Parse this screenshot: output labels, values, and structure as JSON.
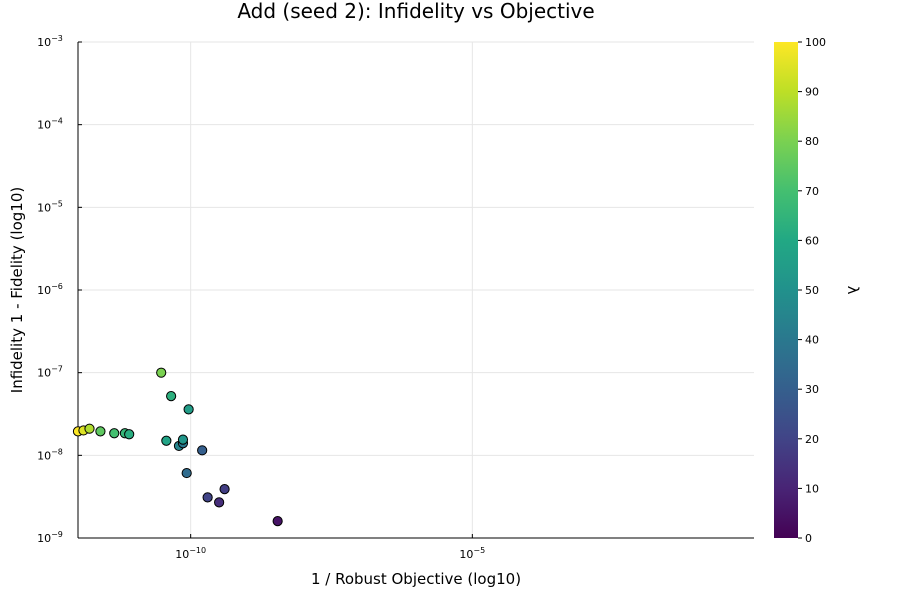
{
  "chart_data": {
    "type": "scatter",
    "title": "Add (seed 2): Infidelity vs Objective",
    "xlabel": "1 / Robust Objective (log10)",
    "ylabel": "Infidelity 1 - Fidelity (log10)",
    "x_scale": "log",
    "y_scale": "log",
    "xlim": [
      1e-12,
      1.0
    ],
    "ylim": [
      1e-09,
      0.001
    ],
    "x_ticks": [
      {
        "value": 1e-10,
        "base": "10",
        "exp": "−10"
      },
      {
        "value": 1e-05,
        "base": "10",
        "exp": "−5"
      }
    ],
    "y_ticks": [
      {
        "value": 1e-09,
        "base": "10",
        "exp": "−9"
      },
      {
        "value": 1e-08,
        "base": "10",
        "exp": "−8"
      },
      {
        "value": 1e-07,
        "base": "10",
        "exp": "−7"
      },
      {
        "value": 1e-06,
        "base": "10",
        "exp": "−6"
      },
      {
        "value": 1e-05,
        "base": "10",
        "exp": "−5"
      },
      {
        "value": 0.0001,
        "base": "10",
        "exp": "−4"
      },
      {
        "value": 0.001,
        "base": "10",
        "exp": "−3"
      }
    ],
    "grid": true,
    "colorbar": {
      "label": "λ",
      "range": [
        0,
        100
      ],
      "ticks": [
        "0",
        "10",
        "20",
        "30",
        "40",
        "50",
        "60",
        "70",
        "80",
        "90",
        "100"
      ],
      "colormap": "viridis"
    },
    "points": [
      {
        "x": 1e-12,
        "y": 1.95e-08,
        "lambda": 100
      },
      {
        "x": 1.25e-12,
        "y": 2e-08,
        "lambda": 95
      },
      {
        "x": 1.6e-12,
        "y": 2.1e-08,
        "lambda": 88
      },
      {
        "x": 2.5e-12,
        "y": 1.95e-08,
        "lambda": 75
      },
      {
        "x": 4.4e-12,
        "y": 1.85e-08,
        "lambda": 70
      },
      {
        "x": 6.8e-12,
        "y": 1.85e-08,
        "lambda": 66
      },
      {
        "x": 8.1e-12,
        "y": 1.8e-08,
        "lambda": 62
      },
      {
        "x": 3e-11,
        "y": 1e-07,
        "lambda": 80
      },
      {
        "x": 4.5e-11,
        "y": 5.2e-08,
        "lambda": 63
      },
      {
        "x": 3.7e-11,
        "y": 1.5e-08,
        "lambda": 58
      },
      {
        "x": 6.2e-11,
        "y": 1.3e-08,
        "lambda": 45
      },
      {
        "x": 7.3e-11,
        "y": 1.4e-08,
        "lambda": 40
      },
      {
        "x": 7.3e-11,
        "y": 1.55e-08,
        "lambda": 52
      },
      {
        "x": 9.2e-11,
        "y": 3.6e-08,
        "lambda": 55
      },
      {
        "x": 8.5e-11,
        "y": 6.1e-09,
        "lambda": 35
      },
      {
        "x": 1.6e-10,
        "y": 1.15e-08,
        "lambda": 30
      },
      {
        "x": 2e-10,
        "y": 3.1e-09,
        "lambda": 20
      },
      {
        "x": 3.2e-10,
        "y": 2.7e-09,
        "lambda": 13
      },
      {
        "x": 4e-10,
        "y": 3.9e-09,
        "lambda": 18
      },
      {
        "x": 3.5e-09,
        "y": 1.6e-09,
        "lambda": 5
      }
    ]
  }
}
